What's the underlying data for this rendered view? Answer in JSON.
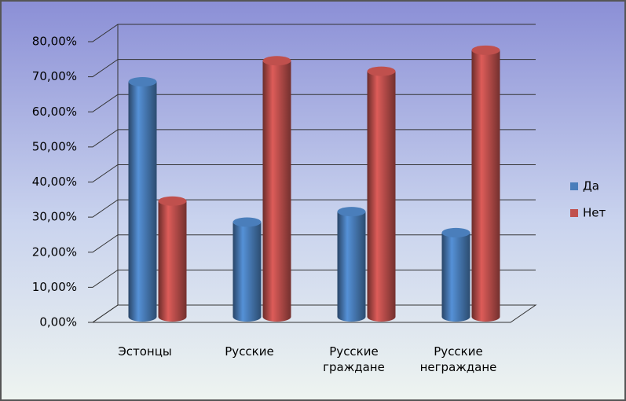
{
  "chart_data": {
    "type": "bar",
    "categories": [
      "Эстонцы",
      "Русские",
      "Русские граждане",
      "Русские неграждане"
    ],
    "series": [
      {
        "name": "Да",
        "color": "#4a7ebb",
        "values": [
          67,
          27,
          30,
          24
        ]
      },
      {
        "name": "Нет",
        "color": "#c0504d",
        "values": [
          33,
          73,
          70,
          76
        ]
      }
    ],
    "ylim": [
      0,
      80
    ],
    "yticks": [
      {
        "value": 0,
        "label": "0,00%"
      },
      {
        "value": 10,
        "label": "10,00%"
      },
      {
        "value": 20,
        "label": "20,00%"
      },
      {
        "value": 30,
        "label": "30,00%"
      },
      {
        "value": 40,
        "label": "40,00%"
      },
      {
        "value": 50,
        "label": "50,00%"
      },
      {
        "value": 60,
        "label": "60,00%"
      },
      {
        "value": 70,
        "label": "70,00%"
      },
      {
        "value": 80,
        "label": "80,00%"
      }
    ],
    "grid": true,
    "legend": "right"
  }
}
